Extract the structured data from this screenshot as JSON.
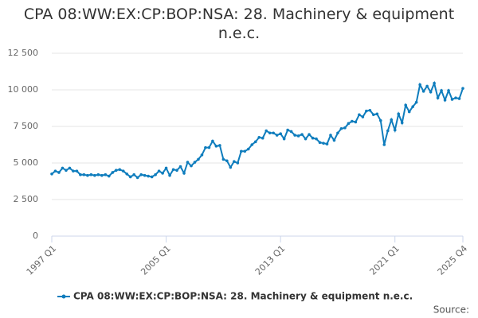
{
  "chart_data": {
    "type": "line",
    "title": "CPA 08:WW:EX:CP:BOP:NSA: 28. Machinery & equipment n.e.c.",
    "source": "Source:",
    "categories": [
      "1997 Q1",
      null,
      null,
      null,
      null,
      null,
      null,
      null,
      null,
      null,
      null,
      null,
      null,
      null,
      null,
      null,
      null,
      null,
      null,
      null,
      null,
      null,
      null,
      null,
      null,
      null,
      null,
      null,
      null,
      null,
      null,
      null,
      "2005 Q1",
      null,
      null,
      null,
      null,
      null,
      null,
      null,
      null,
      null,
      null,
      null,
      null,
      null,
      null,
      null,
      null,
      null,
      null,
      null,
      null,
      null,
      null,
      null,
      null,
      null,
      null,
      null,
      null,
      null,
      null,
      null,
      "2013 Q1",
      null,
      null,
      null,
      null,
      null,
      null,
      null,
      null,
      null,
      null,
      null,
      null,
      null,
      null,
      null,
      null,
      null,
      null,
      null,
      null,
      null,
      null,
      null,
      null,
      null,
      null,
      null,
      null,
      null,
      null,
      null,
      "2021 Q1",
      null,
      null,
      null,
      null,
      null,
      null,
      null,
      null,
      null,
      null,
      null,
      null,
      null,
      null,
      null,
      null,
      null,
      null,
      "2025 Q4"
    ],
    "series": [
      {
        "name": "CPA 08:WW:EX:CP:BOP:NSA: 28. Machinery & equipment n.e.c.",
        "color": "#0f7dbd",
        "values": [
          4250,
          4450,
          4350,
          4650,
          4500,
          4650,
          4450,
          4450,
          4200,
          4200,
          4150,
          4200,
          4150,
          4200,
          4150,
          4200,
          4100,
          4350,
          4500,
          4550,
          4450,
          4250,
          4050,
          4200,
          4000,
          4200,
          4150,
          4100,
          4050,
          4200,
          4450,
          4300,
          4650,
          4150,
          4550,
          4500,
          4750,
          4300,
          5050,
          4800,
          5050,
          5250,
          5550,
          6050,
          6050,
          6500,
          6150,
          6200,
          5250,
          5150,
          4700,
          5100,
          5000,
          5800,
          5800,
          5950,
          6250,
          6450,
          6750,
          6700,
          7200,
          7050,
          7050,
          6900,
          7000,
          6650,
          7250,
          7150,
          6900,
          6850,
          6950,
          6650,
          6950,
          6700,
          6650,
          6400,
          6350,
          6300,
          6900,
          6550,
          7050,
          7350,
          7400,
          7700,
          7850,
          7800,
          8300,
          8150,
          8550,
          8600,
          8300,
          8350,
          7900,
          6250,
          7200,
          7950,
          7250,
          8350,
          7750,
          8950,
          8500,
          8850,
          9150,
          10350,
          9900,
          10250,
          9850,
          10450,
          9450,
          9950,
          9300,
          9950,
          9350,
          9450,
          9400,
          10100
        ]
      }
    ],
    "ylim": [
      0,
      12500
    ],
    "yticks": [
      0,
      {
        "value": 2500,
        "label": "2 500"
      },
      {
        "value": 5000,
        "label": "5 000"
      },
      {
        "value": 7500,
        "label": "7 500"
      },
      {
        "value": 10000,
        "label": "10 000"
      },
      {
        "value": 12500,
        "label": "12 500"
      }
    ],
    "grid": true
  }
}
